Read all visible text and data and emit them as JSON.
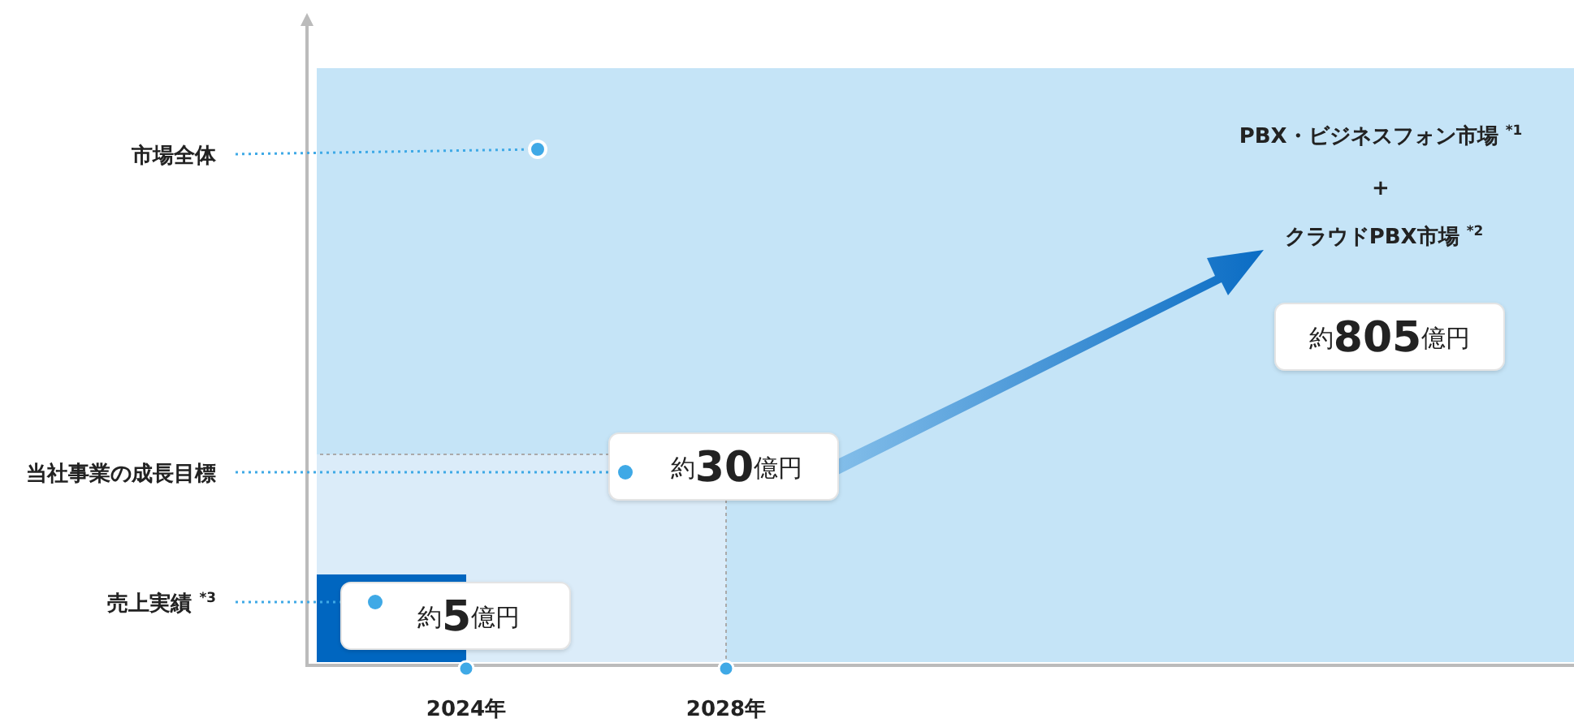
{
  "chart_data": {
    "type": "other",
    "categories": [
      "市場全体",
      "当社事業の成長目標",
      "売上実績 $^{*3}$"
    ],
    "values": [
      805,
      30,
      5
    ],
    "value_labels": [
      "約805億円",
      "約30億円",
      "約5億円"
    ],
    "colors": [
      "#ffffff",
      "#ffffff",
      "#ffffff"
    ],
    "annotations": [
      "PBX・ビジネスフォン市場 $^{*1}$",
      "+",
      "クラウドPBX市場 $^{*2}$",
      "2024年",
      "2028年"
    ]
  }
}
